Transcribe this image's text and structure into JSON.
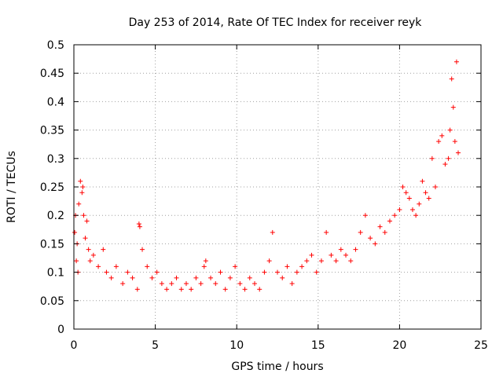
{
  "chart_data": {
    "type": "scatter",
    "title": "Day 253 of 2014, Rate Of TEC Index for receiver reyk",
    "xlabel": "GPS time / hours",
    "ylabel": "ROTI / TECUs",
    "xlim": [
      0,
      25
    ],
    "ylim": [
      0,
      0.5
    ],
    "x_ticks": [
      "0",
      "5",
      "10",
      "15",
      "20",
      "25"
    ],
    "y_ticks": [
      "0",
      "0.05",
      "0.1",
      "0.15",
      "0.2",
      "0.25",
      "0.3",
      "0.35",
      "0.4",
      "0.45",
      "0.5"
    ],
    "grid": true,
    "marker": "+",
    "series_color": "#ff0000",
    "series": [
      {
        "x": [
          0.05,
          0.1,
          0.15,
          0.2,
          0.25,
          0.3,
          0.4,
          0.5,
          0.55,
          0.6,
          0.7,
          0.8,
          0.9,
          1.0,
          1.2,
          1.5,
          1.8,
          2.0,
          2.3,
          2.6,
          3.0,
          3.3,
          3.6,
          3.9,
          4.0,
          4.05,
          4.2,
          4.5,
          4.8,
          5.1,
          5.4,
          5.7,
          6.0,
          6.3,
          6.6,
          6.9,
          7.2,
          7.5,
          7.8,
          8.0,
          8.1,
          8.4,
          8.7,
          9.0,
          9.3,
          9.6,
          9.9,
          10.2,
          10.5,
          10.8,
          11.1,
          11.4,
          11.7,
          12.0,
          12.2,
          12.5,
          12.8,
          13.1,
          13.4,
          13.7,
          14.0,
          14.3,
          14.6,
          14.9,
          15.2,
          15.5,
          15.8,
          16.1,
          16.4,
          16.7,
          17.0,
          17.3,
          17.6,
          17.9,
          18.2,
          18.5,
          18.8,
          19.1,
          19.4,
          19.7,
          20.0,
          20.2,
          20.4,
          20.6,
          20.8,
          21.0,
          21.2,
          21.4,
          21.6,
          21.8,
          22.0,
          22.2,
          22.4,
          22.6,
          22.8,
          23.0,
          23.1,
          23.2,
          23.3,
          23.4,
          23.5,
          23.6
        ],
        "y": [
          0.17,
          0.2,
          0.12,
          0.15,
          0.1,
          0.22,
          0.26,
          0.24,
          0.25,
          0.2,
          0.16,
          0.19,
          0.14,
          0.12,
          0.13,
          0.11,
          0.14,
          0.1,
          0.09,
          0.11,
          0.08,
          0.1,
          0.09,
          0.07,
          0.185,
          0.18,
          0.14,
          0.11,
          0.09,
          0.1,
          0.08,
          0.07,
          0.08,
          0.09,
          0.07,
          0.08,
          0.07,
          0.09,
          0.08,
          0.11,
          0.12,
          0.09,
          0.08,
          0.1,
          0.07,
          0.09,
          0.11,
          0.08,
          0.07,
          0.09,
          0.08,
          0.07,
          0.1,
          0.12,
          0.17,
          0.1,
          0.09,
          0.11,
          0.08,
          0.1,
          0.11,
          0.12,
          0.13,
          0.1,
          0.12,
          0.17,
          0.13,
          0.12,
          0.14,
          0.13,
          0.12,
          0.14,
          0.17,
          0.2,
          0.16,
          0.15,
          0.18,
          0.17,
          0.19,
          0.2,
          0.21,
          0.25,
          0.24,
          0.23,
          0.21,
          0.2,
          0.22,
          0.26,
          0.24,
          0.23,
          0.3,
          0.25,
          0.33,
          0.34,
          0.29,
          0.3,
          0.35,
          0.44,
          0.39,
          0.33,
          0.47,
          0.31
        ]
      }
    ]
  }
}
